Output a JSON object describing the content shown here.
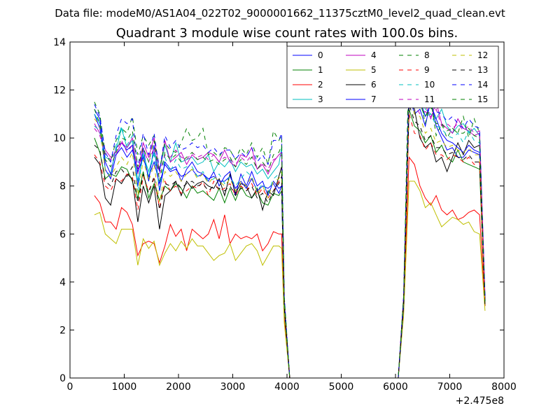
{
  "suptitle": "Data file: modeM0/AS1A04_022T02_9000001662_11375cztM0_level2_quad_clean.evt",
  "chart_data": {
    "type": "line",
    "title": "Quadrant 3 module wise count rates with 100.0s bins.",
    "xlabel": "",
    "ylabel": "",
    "x_offset_label": "+2.475e8",
    "xlim": [
      0,
      8000
    ],
    "ylim": [
      0,
      14
    ],
    "x_ticks": [
      0,
      1000,
      2000,
      3000,
      4000,
      5000,
      6000,
      7000,
      8000
    ],
    "y_ticks": [
      0,
      2,
      4,
      6,
      8,
      10,
      12,
      14
    ],
    "grid": false,
    "legend_position": "top-right",
    "x": [
      450,
      550,
      650,
      750,
      850,
      950,
      1050,
      1150,
      1250,
      1350,
      1450,
      1550,
      1650,
      1750,
      1850,
      1950,
      2050,
      2150,
      2250,
      2350,
      2450,
      2550,
      2650,
      2750,
      2850,
      2950,
      3050,
      3150,
      3250,
      3350,
      3450,
      3550,
      3650,
      3750,
      3850,
      3900,
      3950,
      4050,
      6050,
      6150,
      6250,
      6350,
      6450,
      6550,
      6650,
      6750,
      6850,
      6950,
      7050,
      7150,
      7250,
      7350,
      7450,
      7550,
      7650
    ],
    "series": [
      {
        "name": "0",
        "color": "#0000ff",
        "dash": "solid",
        "values": [
          11.0,
          10.4,
          9.0,
          8.5,
          9.6,
          9.8,
          9.5,
          9.7,
          8.0,
          9.6,
          8.2,
          9.7,
          7.8,
          9.0,
          8.7,
          8.8,
          8.2,
          8.7,
          9.0,
          8.6,
          8.5,
          8.2,
          8.6,
          8.0,
          8.4,
          8.6,
          7.6,
          8.5,
          8.0,
          8.6,
          8.0,
          8.2,
          7.6,
          8.2,
          7.9,
          8.0,
          3.0,
          0,
          0,
          3.0,
          11.8,
          11.0,
          11.2,
          10.5,
          11.6,
          10.5,
          10.0,
          9.5,
          9.6,
          9.2,
          9.2,
          9.5,
          9.4,
          9.3,
          3.2
        ]
      },
      {
        "name": "1",
        "color": "#008000",
        "dash": "solid",
        "values": [
          10.0,
          9.4,
          8.3,
          8.5,
          8.4,
          8.8,
          8.7,
          8.2,
          7.5,
          8.6,
          7.5,
          8.1,
          7.4,
          8.0,
          7.8,
          8.1,
          7.9,
          7.5,
          8.0,
          7.7,
          7.8,
          7.6,
          7.4,
          7.9,
          7.3,
          7.9,
          7.4,
          8.0,
          7.6,
          7.5,
          7.8,
          7.3,
          7.2,
          7.7,
          7.6,
          7.8,
          2.9,
          0,
          0,
          3.0,
          11.2,
          10.5,
          10.3,
          9.8,
          10.1,
          9.4,
          9.7,
          9.2,
          9.0,
          9.5,
          9.0,
          8.9,
          8.8,
          8.7,
          3.0
        ]
      },
      {
        "name": "2",
        "color": "#ff0000",
        "dash": "solid",
        "values": [
          7.6,
          7.3,
          6.5,
          6.5,
          6.2,
          7.1,
          6.9,
          6.4,
          5.1,
          5.6,
          5.7,
          5.6,
          4.8,
          5.5,
          6.4,
          5.9,
          6.2,
          5.3,
          6.2,
          6.0,
          5.8,
          6.0,
          6.6,
          5.8,
          6.8,
          5.6,
          6.0,
          5.8,
          5.9,
          5.8,
          6.0,
          5.3,
          5.6,
          6.1,
          6.0,
          6.0,
          2.5,
          0,
          0,
          2.9,
          9.2,
          8.9,
          8.0,
          7.5,
          7.2,
          7.6,
          7.0,
          6.8,
          7.0,
          6.6,
          6.7,
          6.9,
          7.0,
          6.8,
          3.0
        ]
      },
      {
        "name": "3",
        "color": "#00bfbf",
        "dash": "solid",
        "values": [
          11.0,
          10.6,
          9.2,
          9.1,
          9.5,
          10.4,
          9.6,
          9.9,
          8.2,
          9.3,
          8.6,
          9.4,
          8.6,
          9.7,
          9.0,
          9.8,
          9.0,
          9.1,
          9.2,
          8.9,
          9.0,
          9.3,
          8.6,
          9.0,
          8.8,
          9.1,
          8.6,
          9.0,
          8.8,
          8.9,
          8.5,
          8.7,
          8.3,
          8.6,
          8.9,
          9.6,
          3.1,
          0,
          0,
          3.3,
          12.3,
          11.5,
          11.8,
          11.2,
          11.0,
          10.8,
          11.2,
          10.5,
          10.2,
          10.5,
          10.6,
          10.2,
          10.4,
          10.1,
          3.3
        ]
      },
      {
        "name": "4",
        "color": "#bf00bf",
        "dash": "solid",
        "values": [
          10.6,
          10.2,
          9.5,
          9.2,
          9.3,
          9.8,
          9.6,
          10.0,
          8.5,
          9.8,
          9.2,
          10.0,
          8.6,
          9.9,
          9.0,
          9.2,
          9.4,
          8.9,
          9.3,
          9.1,
          9.2,
          9.4,
          9.3,
          9.0,
          9.5,
          9.0,
          8.8,
          9.3,
          9.2,
          9.6,
          8.7,
          8.9,
          8.5,
          9.0,
          9.3,
          9.4,
          3.2,
          0,
          0,
          3.4,
          12.2,
          11.6,
          11.3,
          11.4,
          10.8,
          11.5,
          10.6,
          10.4,
          10.2,
          10.8,
          10.4,
          10.3,
          10.1,
          10.2,
          3.4
        ]
      },
      {
        "name": "5",
        "color": "#bfbf00",
        "dash": "solid",
        "values": [
          6.8,
          6.9,
          6.0,
          5.8,
          5.6,
          6.2,
          6.2,
          6.2,
          4.7,
          5.8,
          5.4,
          5.7,
          4.7,
          5.2,
          5.6,
          5.3,
          5.7,
          5.4,
          5.8,
          5.5,
          5.5,
          5.2,
          4.9,
          5.1,
          5.2,
          5.6,
          4.9,
          5.2,
          5.5,
          5.6,
          5.3,
          4.7,
          5.1,
          5.5,
          5.5,
          5.4,
          2.3,
          0,
          0,
          2.6,
          8.2,
          8.2,
          7.8,
          7.1,
          7.3,
          6.8,
          6.3,
          6.5,
          6.7,
          6.6,
          6.4,
          6.5,
          6.1,
          6.0,
          2.8
        ]
      },
      {
        "name": "6",
        "color": "#000000",
        "dash": "solid",
        "values": [
          9.2,
          8.9,
          7.5,
          7.2,
          8.3,
          8.1,
          8.5,
          8.3,
          6.5,
          8.0,
          7.3,
          8.0,
          6.2,
          7.6,
          7.8,
          8.2,
          7.6,
          8.2,
          7.9,
          8.1,
          8.2,
          8.0,
          7.9,
          8.3,
          7.6,
          8.5,
          7.7,
          8.1,
          8.0,
          7.5,
          7.9,
          7.0,
          7.8,
          7.6,
          8.4,
          8.8,
          3.0,
          0,
          0,
          3.1,
          11.5,
          11.2,
          10.0,
          9.6,
          9.8,
          9.0,
          9.2,
          8.6,
          9.2,
          9.8,
          9.3,
          9.9,
          9.6,
          9.7,
          3.2
        ]
      },
      {
        "name": "7",
        "color": "#0000ff",
        "dash": "solid",
        "values": [
          11.2,
          10.8,
          8.7,
          8.3,
          9.3,
          9.6,
          9.2,
          9.5,
          8.6,
          9.2,
          8.4,
          9.0,
          8.1,
          8.9,
          8.6,
          8.7,
          8.4,
          8.5,
          8.7,
          8.4,
          8.5,
          8.3,
          8.4,
          8.2,
          8.2,
          8.4,
          7.9,
          8.2,
          7.9,
          8.3,
          7.8,
          8.0,
          7.9,
          8.1,
          7.7,
          8.0,
          3.0,
          0,
          0,
          3.0,
          12.0,
          11.3,
          11.6,
          10.9,
          11.4,
          10.8,
          10.2,
          9.9,
          9.8,
          9.6,
          9.4,
          9.7,
          9.5,
          9.4,
          3.3
        ]
      },
      {
        "name": "8",
        "color": "#008000",
        "dash": "dashed",
        "values": [
          11.5,
          11.0,
          9.3,
          9.0,
          9.9,
          10.4,
          10.2,
          10.9,
          9.3,
          10.1,
          9.7,
          10.1,
          8.7,
          9.8,
          9.5,
          9.4,
          9.8,
          10.4,
          9.9,
          10.0,
          10.4,
          9.3,
          9.4,
          9.2,
          9.6,
          9.5,
          9.1,
          9.6,
          9.3,
          9.8,
          9.2,
          9.6,
          8.9,
          10.3,
          9.9,
          10.1,
          3.4,
          0,
          0,
          3.4,
          13.0,
          11.2,
          11.6,
          10.6,
          11.6,
          10.1,
          10.6,
          10.0,
          10.4,
          10.2,
          10.9,
          10.0,
          10.8,
          10.2,
          3.2
        ]
      },
      {
        "name": "9",
        "color": "#ff0000",
        "dash": "dashed",
        "values": [
          9.3,
          9.0,
          8.0,
          7.8,
          8.3,
          8.2,
          8.5,
          8.4,
          7.0,
          8.4,
          7.8,
          8.3,
          7.1,
          8.2,
          7.8,
          8.0,
          7.7,
          7.8,
          8.0,
          7.9,
          8.2,
          7.6,
          8.2,
          7.8,
          7.9,
          8.1,
          7.6,
          8.0,
          7.8,
          8.1,
          7.6,
          7.9,
          7.5,
          7.8,
          8.2,
          8.3,
          3.0,
          0,
          0,
          3.1,
          11.0,
          10.2,
          10.1,
          9.5,
          9.8,
          9.3,
          9.3,
          9.1,
          9.3,
          9.2,
          9.0,
          9.2,
          8.9,
          9.0,
          3.1
        ]
      },
      {
        "name": "10",
        "color": "#00bfbf",
        "dash": "dashed",
        "values": [
          10.5,
          10.3,
          8.7,
          8.4,
          9.7,
          10.5,
          9.7,
          10.1,
          7.8,
          9.4,
          8.4,
          9.3,
          7.9,
          9.2,
          8.6,
          9.1,
          8.7,
          8.8,
          8.8,
          8.4,
          8.6,
          8.2,
          8.3,
          8.5,
          8.1,
          8.4,
          8.0,
          8.3,
          8.6,
          8.4,
          7.8,
          8.1,
          7.7,
          8.3,
          8.5,
          8.6,
          3.0,
          0,
          0,
          3.2,
          12.5,
          11.4,
          11.3,
          10.9,
          11.0,
          10.5,
          10.4,
          10.1,
          10.0,
          10.2,
          9.8,
          10.3,
          9.9,
          9.8,
          3.2
        ]
      },
      {
        "name": "11",
        "color": "#bf00bf",
        "dash": "dashed",
        "values": [
          10.4,
          10.1,
          9.3,
          9.1,
          9.5,
          9.9,
          9.4,
          9.7,
          8.6,
          9.5,
          9.0,
          9.6,
          8.5,
          9.3,
          9.2,
          9.5,
          9.2,
          9.1,
          9.4,
          9.2,
          9.3,
          9.1,
          9.3,
          9.0,
          9.2,
          9.1,
          8.9,
          9.2,
          9.0,
          9.3,
          8.7,
          9.0,
          8.7,
          9.1,
          9.2,
          9.3,
          3.2,
          0,
          0,
          3.4,
          12.4,
          11.4,
          11.0,
          11.1,
          10.9,
          11.2,
          10.5,
          10.6,
          10.4,
          10.6,
          10.3,
          10.5,
          10.2,
          10.3,
          3.4
        ]
      },
      {
        "name": "12",
        "color": "#bfbf00",
        "dash": "dashed",
        "values": [
          10.8,
          10.5,
          8.6,
          8.4,
          8.8,
          9.2,
          8.9,
          9.4,
          7.6,
          9.1,
          8.2,
          8.9,
          7.3,
          8.6,
          8.4,
          8.6,
          8.2,
          8.5,
          8.7,
          8.3,
          8.5,
          8.1,
          8.4,
          8.2,
          8.0,
          8.3,
          7.8,
          8.2,
          8.0,
          8.4,
          7.7,
          8.0,
          7.5,
          8.2,
          8.3,
          8.6,
          3.1,
          0,
          0,
          3.2,
          11.9,
          11.0,
          10.9,
          10.2,
          10.4,
          9.8,
          9.9,
          9.6,
          9.7,
          9.5,
          9.4,
          9.6,
          9.3,
          9.3,
          3.1
        ]
      },
      {
        "name": "13",
        "color": "#000000",
        "dash": "dashed",
        "values": [
          9.7,
          9.5,
          8.2,
          8.0,
          8.6,
          8.7,
          8.4,
          8.8,
          7.3,
          8.5,
          7.7,
          8.4,
          7.0,
          8.1,
          8.0,
          8.2,
          7.9,
          8.1,
          8.2,
          8.0,
          8.1,
          7.8,
          8.0,
          7.9,
          7.8,
          8.0,
          7.6,
          7.9,
          7.8,
          8.0,
          7.5,
          7.7,
          7.3,
          7.8,
          8.1,
          8.4,
          3.0,
          0,
          0,
          3.1,
          11.4,
          10.7,
          10.5,
          9.9,
          10.1,
          9.6,
          9.6,
          9.3,
          9.4,
          9.2,
          9.1,
          9.3,
          9.0,
          9.0,
          3.0
        ]
      },
      {
        "name": "14",
        "color": "#0000ff",
        "dash": "dashed",
        "values": [
          11.4,
          10.9,
          9.4,
          9.0,
          10.1,
          10.8,
          10.6,
          10.8,
          8.7,
          10.2,
          9.3,
          10.2,
          8.6,
          10.1,
          9.6,
          9.9,
          9.5,
          9.6,
          9.8,
          9.6,
          9.7,
          9.4,
          9.6,
          9.3,
          9.5,
          9.5,
          9.1,
          9.4,
          9.2,
          9.6,
          9.0,
          9.3,
          8.9,
          9.9,
          9.9,
          10.2,
          3.4,
          0,
          0,
          3.4,
          12.6,
          11.8,
          11.9,
          11.4,
          11.6,
          11.1,
          11.0,
          10.7,
          10.9,
          10.6,
          10.4,
          10.8,
          10.5,
          10.4,
          3.4
        ]
      },
      {
        "name": "15",
        "color": "#008000",
        "dash": "dashed",
        "values": [
          11.2,
          10.6,
          9.1,
          8.8,
          9.4,
          10.0,
          9.9,
          10.3,
          8.8,
          9.6,
          9.0,
          9.9,
          8.2,
          9.4,
          9.1,
          9.3,
          9.0,
          9.2,
          9.4,
          9.1,
          9.2,
          9.0,
          9.1,
          8.9,
          9.1,
          9.2,
          8.8,
          9.1,
          8.9,
          9.2,
          8.7,
          9.0,
          8.6,
          9.3,
          9.4,
          9.7,
          3.2,
          0,
          0,
          3.3,
          13.8,
          11.6,
          11.4,
          10.9,
          11.3,
          10.6,
          10.6,
          10.3,
          10.4,
          10.2,
          10.2,
          10.4,
          10.1,
          10.0,
          3.2
        ]
      }
    ]
  }
}
